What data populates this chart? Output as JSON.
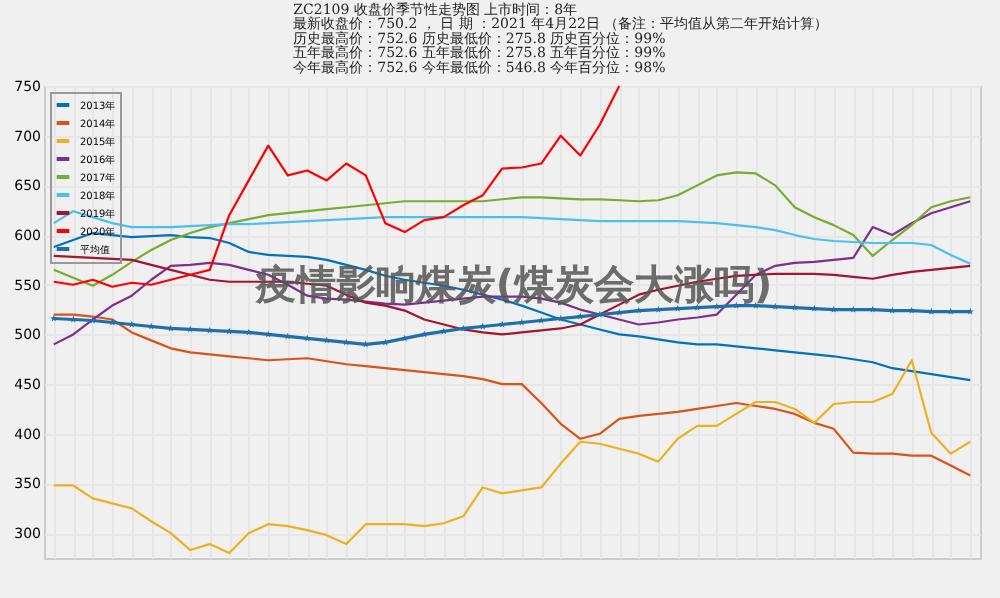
{
  "chart_data": {
    "type": "line",
    "title": "疫情影响煤炭(煤炭会大涨吗)",
    "annotations": [
      "ZC2109  收盘价季节性走势图      上市时间：8年",
      "最新收盘价：750.2 ， 日 期 ：2021 年4月22日 （备注：平均值从第二年开始计算）",
      "历史最高价：752.6 历史最低价：275.8 历史百分位：99%",
      "五年最高价：752.6 五年最低价：275.8 五年百分位：99%",
      "今年最高价：752.6 今年最低价：546.8 今年百分位：98%"
    ],
    "categories": [
      null,
      null,
      null,
      null,
      null,
      null,
      null,
      null,
      null,
      null,
      null,
      null,
      null,
      null,
      null,
      null,
      null,
      null,
      null,
      null,
      null,
      null,
      null,
      null,
      null,
      null,
      null,
      null,
      null,
      null,
      null,
      null,
      null,
      null,
      null,
      null,
      null,
      null,
      null,
      null,
      null,
      null,
      null,
      null,
      null,
      null,
      null,
      null
    ],
    "ylim": [
      275,
      750
    ],
    "yticks": [
      300,
      350,
      400,
      450,
      500,
      550,
      600,
      650,
      700,
      750
    ],
    "grid": true,
    "legend": "top left",
    "tick_labels": "y",
    "series": [
      {
        "name": "2013年",
        "color": "#0072bd",
        "values": [
          588,
          595,
          602,
          600,
          598,
          599,
          600,
          598,
          597,
          592,
          583,
          580,
          579,
          578,
          575,
          570,
          565,
          559,
          555,
          552,
          549,
          545,
          540,
          535,
          529,
          522,
          515,
          510,
          505,
          500,
          498,
          495,
          492,
          490,
          490,
          488,
          486,
          484,
          482,
          480,
          478,
          475,
          472,
          466,
          463,
          460,
          457,
          454
        ]
      },
      {
        "name": "2014年",
        "color": "#d95319",
        "values": [
          520,
          520,
          518,
          515,
          502,
          494,
          486,
          482,
          480,
          478,
          476,
          474,
          475,
          476,
          473,
          470,
          468,
          466,
          464,
          462,
          460,
          458,
          455,
          450,
          450,
          431,
          410,
          395,
          400,
          415,
          418,
          420,
          422,
          425,
          428,
          431,
          428,
          425,
          420,
          411,
          405,
          381,
          380,
          380,
          378,
          378,
          368,
          358
        ]
      },
      {
        "name": "2015年",
        "color": "#edb120",
        "values": [
          348,
          348,
          335,
          330,
          325,
          312,
          300,
          283,
          289,
          280,
          300,
          309,
          307,
          303,
          298,
          289,
          309,
          309,
          309,
          307,
          310,
          317,
          346,
          340,
          343,
          346,
          370,
          392,
          390,
          385,
          380,
          372,
          395,
          408,
          408,
          420,
          432,
          432,
          425,
          411,
          430,
          432,
          432,
          440,
          474,
          401,
          380,
          392
        ]
      },
      {
        "name": "2016年",
        "color": "#7e2f8e",
        "values": [
          490,
          500,
          515,
          529,
          539,
          555,
          569,
          570,
          572,
          570,
          565,
          560,
          550,
          539,
          536,
          535,
          533,
          531,
          530,
          532,
          534,
          536,
          538,
          538,
          538,
          536,
          532,
          525,
          520,
          515,
          510,
          512,
          515,
          517,
          520,
          540,
          560,
          569,
          572,
          573,
          575,
          577,
          608,
          600,
          612,
          622,
          628,
          634
        ]
      },
      {
        "name": "2017年",
        "color": "#77ac30",
        "values": [
          565,
          557,
          549,
          560,
          573,
          585,
          595,
          602,
          608,
          612,
          616,
          620,
          622,
          624,
          626,
          628,
          630,
          632,
          634,
          634,
          634,
          634,
          634,
          636,
          638,
          638,
          637,
          636,
          636,
          635,
          634,
          635,
          640,
          650,
          660,
          663,
          662,
          650,
          628,
          618,
          610,
          600,
          579,
          595,
          610,
          628,
          634,
          638
        ]
      },
      {
        "name": "2018年",
        "color": "#4dbeee",
        "values": [
          612,
          624,
          618,
          612,
          608,
          608,
          608,
          609,
          610,
          611,
          611,
          612,
          613,
          614,
          615,
          616,
          617,
          618,
          618,
          618,
          618,
          618,
          618,
          618,
          618,
          617,
          616,
          615,
          614,
          614,
          614,
          614,
          614,
          613,
          612,
          610,
          608,
          605,
          600,
          596,
          594,
          593,
          592,
          592,
          592,
          590,
          580,
          571
        ]
      },
      {
        "name": "2019年",
        "color": "#a2142f",
        "values": [
          579,
          578,
          577,
          576,
          575,
          570,
          565,
          560,
          555,
          553,
          553,
          553,
          553,
          551,
          549,
          540,
          532,
          529,
          524,
          515,
          510,
          505,
          502,
          500,
          502,
          504,
          506,
          510,
          520,
          530,
          540,
          545,
          549,
          553,
          556,
          559,
          560,
          561,
          561,
          561,
          560,
          558,
          556,
          560,
          563,
          565,
          567,
          569
        ]
      },
      {
        "name": "2020年",
        "color": "#ff0000",
        "values": [
          553,
          550,
          555,
          548,
          552,
          550,
          555,
          560,
          565,
          620,
          655,
          690,
          660,
          665,
          655,
          672,
          660,
          612,
          603,
          615,
          618,
          630,
          640,
          667,
          668,
          672,
          700,
          680,
          711,
          750,
          null,
          null,
          null,
          null,
          null,
          null,
          null,
          null,
          null,
          null,
          null,
          null,
          null,
          null,
          null,
          null,
          null,
          null
        ]
      },
      {
        "name": "平均值",
        "color": "#1f6fa8",
        "marker": "star",
        "values": [
          516,
          515,
          514,
          512,
          510,
          508,
          506,
          505,
          504,
          503,
          502,
          500,
          498,
          496,
          494,
          492,
          490,
          492,
          496,
          500,
          503,
          506,
          508,
          510,
          512,
          514,
          516,
          518,
          520,
          522,
          524,
          525,
          526,
          527,
          528,
          529,
          529,
          528,
          527,
          526,
          525,
          525,
          525,
          524,
          524,
          523,
          523,
          523
        ]
      }
    ]
  }
}
